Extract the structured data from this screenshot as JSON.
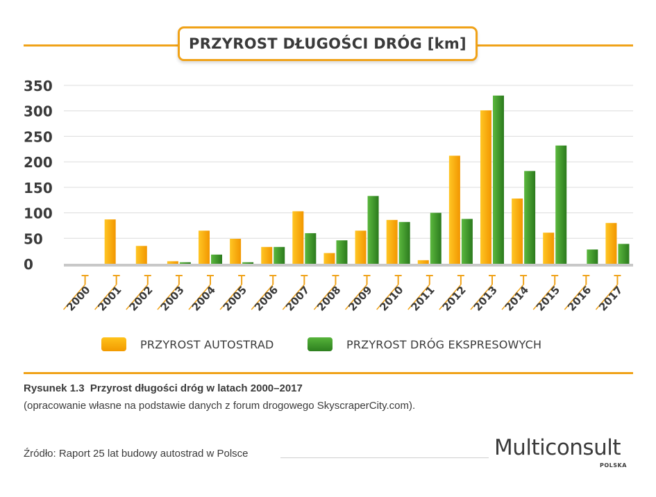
{
  "title": "PRZYROST DŁUGOŚCI DRÓG [km]",
  "colors": {
    "accent": "#f0a218",
    "autostrady": "#f5a800",
    "ekspresowe": "#3f9a2c",
    "grid": "#dcdcdc",
    "text": "#3a3a3a"
  },
  "legend": {
    "autostrady": "PRZYROST AUTOSTRAD",
    "ekspresowe": "PRZYROST DRÓG EKSPRESOWYCH"
  },
  "chart_data": {
    "type": "bar",
    "title": "PRZYROST DŁUGOŚCI DRÓG [km]",
    "xlabel": "",
    "ylabel": "",
    "ylim": [
      0,
      350
    ],
    "yticks": [
      0,
      50,
      100,
      150,
      200,
      250,
      300,
      350
    ],
    "grid": true,
    "legend_position": "bottom",
    "categories": [
      "2000",
      "2001",
      "2002",
      "2003",
      "2004",
      "2005",
      "2006",
      "2007",
      "2008",
      "2009",
      "2010",
      "2011",
      "2012",
      "2013",
      "2014",
      "2015",
      "2016",
      "2017"
    ],
    "series": [
      {
        "name": "PRZYROST AUTOSTRAD",
        "values": [
          0,
          87,
          35,
          5,
          65,
          49,
          33,
          103,
          21,
          65,
          86,
          7,
          212,
          301,
          128,
          61,
          0,
          80
        ]
      },
      {
        "name": "PRZYROST DRÓG EKSPRESOWYCH",
        "values": [
          0,
          0,
          0,
          3,
          18,
          3,
          33,
          60,
          46,
          133,
          82,
          100,
          88,
          330,
          182,
          232,
          28,
          39
        ]
      }
    ]
  },
  "caption": {
    "figure": "Rysunek 1.3",
    "text": "Przyrost długości dróg w latach 2000–2017",
    "note": "(opracowanie własne na podstawie danych z forum drogowego SkyscraperCity.com)."
  },
  "source": "Źródło: Raport 25 lat budowy autostrad w Polsce",
  "logo": {
    "name": "Multiconsult",
    "sub": "POLSKA"
  }
}
